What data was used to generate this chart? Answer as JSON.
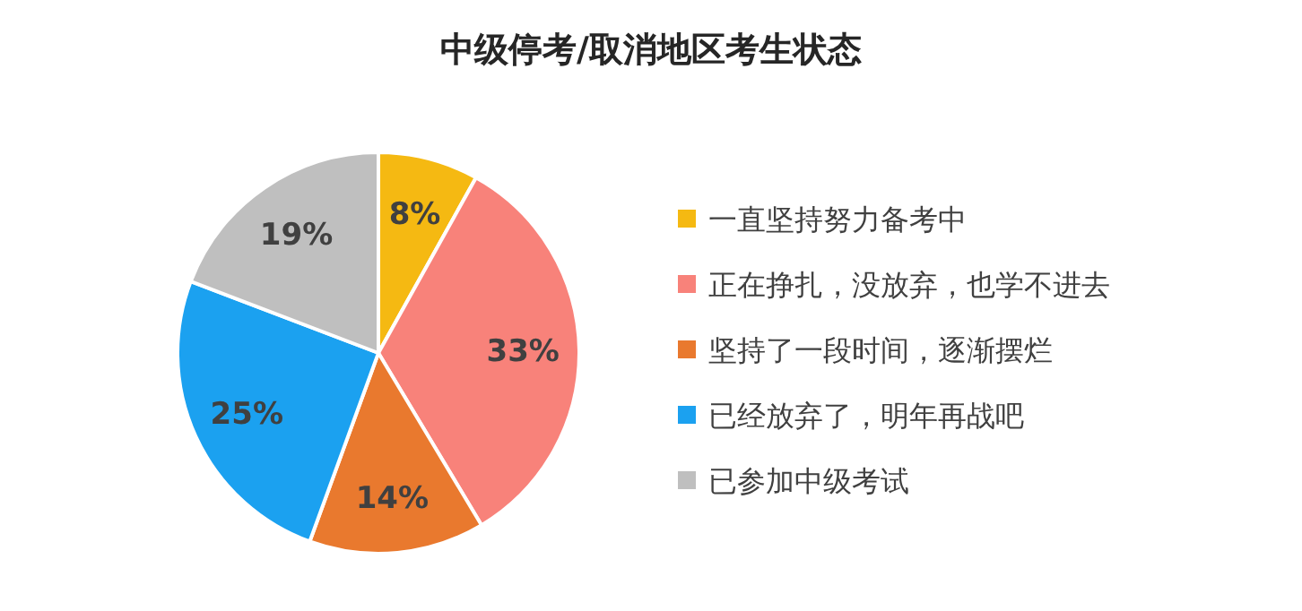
{
  "chart_data": {
    "type": "pie",
    "title": "中级停考/取消地区考生状态",
    "categories": [
      "一直坚持努力备考中",
      "正在挣扎，没放弃，也学不进去",
      "坚持了一段时间，逐渐摆烂",
      "已经放弃了，明年再战吧",
      "已参加中级考试"
    ],
    "values": [
      8,
      33,
      14,
      25,
      19
    ],
    "colors": [
      "#f5b912",
      "#f8827a",
      "#e9792e",
      "#1ba1f0",
      "#bfbfbf"
    ],
    "value_labels": [
      "8%",
      "33%",
      "14%",
      "25%",
      "19%"
    ],
    "legend": "right"
  }
}
